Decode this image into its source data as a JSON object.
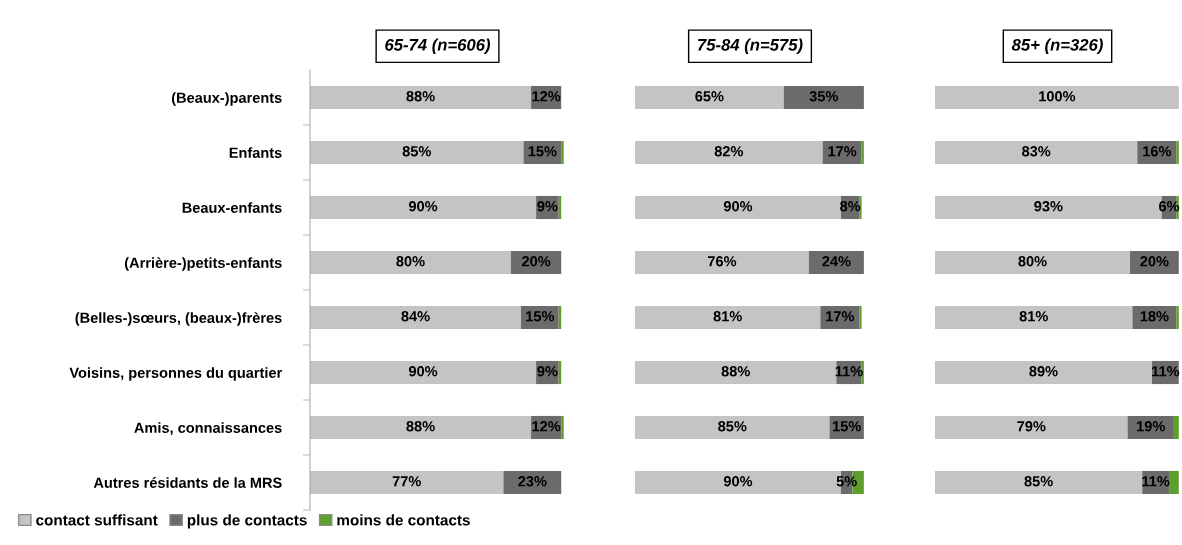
{
  "chart_data": [
    {
      "type": "bar",
      "orientation": "horizontal",
      "stacked": true,
      "title": "65-74 (n=606)",
      "tick_labels": "y",
      "legend": "bottom",
      "categories": [
        "(Beaux-)parents",
        "Enfants",
        "Beaux-enfants",
        "(Arrière-)petits-enfants",
        "(Belles-)sœurs, (beaux-)frères",
        "Voisins, personnes du quartier",
        "Amis, connaissances",
        "Autres résidants de la MRS"
      ],
      "series": [
        {
          "name": "contact suffisant",
          "color": "#c4c4c4",
          "values": [
            88,
            85,
            90,
            80,
            84,
            90,
            88,
            77
          ],
          "value_labels": [
            "88%",
            "85%",
            "90%",
            "80%",
            "84%",
            "90%",
            "88%",
            "77%"
          ]
        },
        {
          "name": "plus de contacts",
          "color": "#6b6b6b",
          "values": [
            12,
            15,
            9,
            20,
            15,
            9,
            12,
            23
          ],
          "value_labels": [
            "12%",
            "15%",
            "9%",
            "20%",
            "15%",
            "9%",
            "12%",
            "23%"
          ]
        },
        {
          "name": "moins de contacts",
          "color": "#5e9e2e",
          "values": [
            0,
            1,
            1,
            0,
            1,
            1,
            1,
            0
          ]
        }
      ]
    },
    {
      "type": "bar",
      "orientation": "horizontal",
      "stacked": true,
      "title": "75-84 (n=575)",
      "tick_labels": false,
      "categories": [
        null,
        null,
        null,
        null,
        null,
        null,
        null,
        null
      ],
      "series": [
        {
          "color": "#c4c4c4",
          "values": [
            65,
            82,
            90,
            76,
            81,
            88,
            85,
            90
          ],
          "value_labels": [
            "65%",
            "82%",
            "90%",
            "76%",
            "81%",
            "88%",
            "85%",
            "90%"
          ]
        },
        {
          "color": "#6b6b6b",
          "values": [
            35,
            17,
            8,
            24,
            17,
            11,
            15,
            5
          ],
          "value_labels": [
            "35%",
            "17%",
            "8%",
            "24%",
            "17%",
            "11%",
            "15%",
            "5%"
          ]
        },
        {
          "color": "#5e9e2e",
          "values": [
            0,
            1,
            1,
            0,
            1,
            1,
            0,
            5
          ]
        }
      ]
    },
    {
      "type": "bar",
      "orientation": "horizontal",
      "stacked": true,
      "title": "85+ (n=326)",
      "tick_labels": false,
      "categories": [
        null,
        null,
        null,
        null,
        null,
        null,
        null,
        null
      ],
      "series": [
        {
          "color": "#c4c4c4",
          "values": [
            100,
            83,
            93,
            80,
            81,
            89,
            79,
            85
          ],
          "value_labels": [
            "100%",
            "83%",
            "93%",
            "80%",
            "81%",
            "89%",
            "79%",
            "85%"
          ]
        },
        {
          "color": "#6b6b6b",
          "values": [
            0,
            16,
            6,
            20,
            18,
            11,
            19,
            11
          ],
          "value_labels": [
            null,
            "16%",
            "6%",
            "20%",
            "18%",
            "11%",
            "19%",
            "11%"
          ]
        },
        {
          "color": "#5e9e2e",
          "values": [
            0,
            1,
            1,
            0,
            1,
            0,
            2,
            4
          ]
        }
      ]
    }
  ]
}
